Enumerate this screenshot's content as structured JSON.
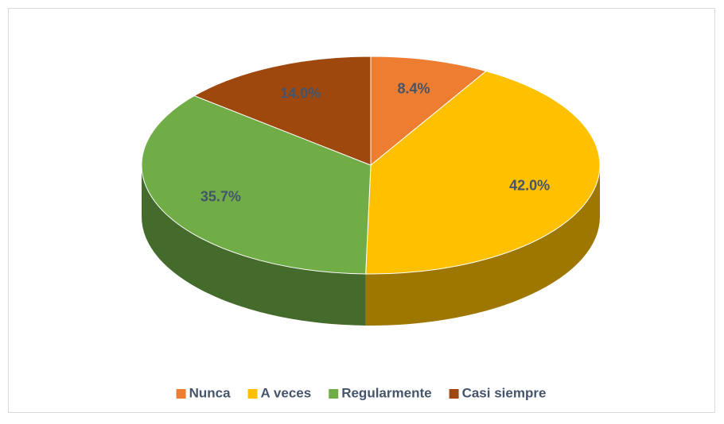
{
  "chart_data": {
    "type": "pie3d",
    "categories": [
      "Nunca",
      "A veces",
      "Regularmente",
      "Casi siempre"
    ],
    "values": [
      8.4,
      42.0,
      35.7,
      14.0
    ],
    "value_labels": [
      "8.4%",
      "42.0%",
      "35.7%",
      "14.0%"
    ],
    "colors": [
      "#ed7d31",
      "#ffc000",
      "#70ad47",
      "#9e480e"
    ],
    "legend": "bottom"
  }
}
